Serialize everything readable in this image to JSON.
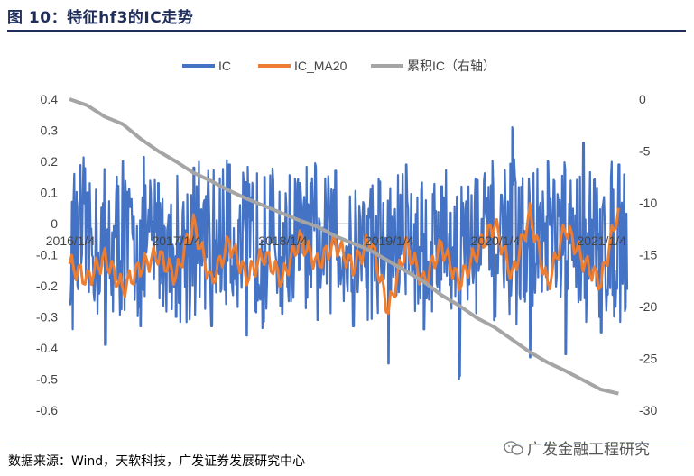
{
  "figure": {
    "title": "图 10：特征hf3的IC走势",
    "source": "数据来源：Wind，天软科技，广发证券发展研究中心",
    "watermark": "广发金融工程研究"
  },
  "colors": {
    "ic": "#4472c4",
    "ic_ma20": "#ed7d31",
    "cum_ic": "#a5a5a5",
    "title": "#1f2d5a"
  },
  "chart_data": {
    "type": "line",
    "legend": [
      "IC",
      "IC_MA20",
      "累积IC（右轴）"
    ],
    "legend_placement": "top",
    "x_tick_labels": [
      "2016/1/4",
      "2017/1/4",
      "2018/1/4",
      "2019/1/4",
      "2020/1/4",
      "2021/1/4"
    ],
    "y_left_ticks": [
      "0.4",
      "0.3",
      "0.2",
      "0.1",
      "0",
      "-0.1",
      "-0.2",
      "-0.3",
      "-0.4",
      "-0.5",
      "-0.6"
    ],
    "y_right_ticks": [
      "0",
      "-5",
      "-10",
      "-15",
      "-20",
      "-25",
      "-30"
    ],
    "y_left_range": [
      -0.6,
      0.4
    ],
    "y_right_range": [
      -30,
      0
    ],
    "x_range": [
      "2016/1/4",
      "2021/3/31"
    ],
    "grid": false,
    "series": [
      {
        "name": "IC",
        "axis": "left",
        "x": [
          "2016/1",
          "2016/3",
          "2016/5",
          "2016/7",
          "2016/9",
          "2016/11",
          "2017/1",
          "2017/3",
          "2017/5",
          "2017/7",
          "2017/9",
          "2017/11",
          "2018/1",
          "2018/3",
          "2018/5",
          "2018/7",
          "2018/9",
          "2018/11",
          "2019/1",
          "2019/3",
          "2019/5",
          "2019/7",
          "2019/9",
          "2019/11",
          "2020/1",
          "2020/3",
          "2020/5",
          "2020/7",
          "2020/9",
          "2020/11",
          "2021/1",
          "2021/3"
        ],
        "values": [
          -0.26,
          0.1,
          -0.39,
          0.2,
          -0.33,
          0.13,
          -0.3,
          0.18,
          -0.33,
          0.19,
          -0.36,
          0.15,
          -0.29,
          0.13,
          -0.31,
          0.17,
          -0.33,
          0.11,
          -0.45,
          0.19,
          -0.34,
          0.12,
          -0.5,
          0.14,
          -0.3,
          0.31,
          -0.43,
          0.2,
          -0.42,
          0.26,
          -0.35,
          0.19
        ]
      },
      {
        "name": "IC_MA20",
        "axis": "left",
        "x": [
          "2016/1",
          "2016/3",
          "2016/5",
          "2016/7",
          "2016/9",
          "2016/11",
          "2017/1",
          "2017/3",
          "2017/5",
          "2017/7",
          "2017/9",
          "2017/11",
          "2018/1",
          "2018/3",
          "2018/5",
          "2018/7",
          "2018/9",
          "2018/11",
          "2019/1",
          "2019/3",
          "2019/5",
          "2019/7",
          "2019/9",
          "2019/11",
          "2020/1",
          "2020/3",
          "2020/5",
          "2020/7",
          "2020/9",
          "2020/11",
          "2021/1",
          "2021/3"
        ],
        "values": [
          -0.13,
          -0.18,
          -0.11,
          -0.21,
          -0.14,
          -0.1,
          -0.17,
          0.0,
          -0.19,
          -0.06,
          -0.17,
          -0.1,
          -0.18,
          -0.05,
          -0.13,
          -0.06,
          -0.14,
          -0.05,
          -0.28,
          -0.07,
          -0.19,
          -0.07,
          -0.19,
          -0.09,
          0.0,
          -0.17,
          0.03,
          -0.2,
          -0.01,
          -0.12,
          -0.19,
          0.05
        ]
      },
      {
        "name": "累积IC（右轴）",
        "axis": "right",
        "x": [
          "2016/1",
          "2016/3",
          "2016/5",
          "2016/7",
          "2016/9",
          "2016/11",
          "2017/1",
          "2017/3",
          "2017/5",
          "2017/7",
          "2017/9",
          "2017/11",
          "2018/1",
          "2018/3",
          "2018/5",
          "2018/7",
          "2018/9",
          "2018/11",
          "2019/1",
          "2019/3",
          "2019/5",
          "2019/7",
          "2019/9",
          "2019/11",
          "2020/1",
          "2020/3",
          "2020/5",
          "2020/7",
          "2020/9",
          "2020/11",
          "2021/1",
          "2021/3"
        ],
        "values": [
          0,
          -0.6,
          -1.7,
          -2.4,
          -3.8,
          -5.0,
          -6.0,
          -7.1,
          -7.9,
          -8.8,
          -9.6,
          -10.3,
          -11.0,
          -11.7,
          -12.3,
          -13.2,
          -13.9,
          -14.6,
          -15.6,
          -16.6,
          -17.6,
          -18.9,
          -19.9,
          -21.1,
          -22.0,
          -23.2,
          -24.4,
          -25.4,
          -26.2,
          -27.1,
          -28.0,
          -28.4
        ]
      }
    ]
  }
}
